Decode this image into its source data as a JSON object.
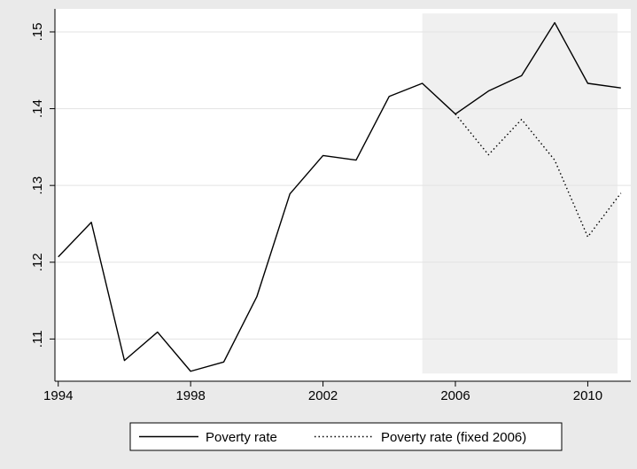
{
  "chart_data": {
    "type": "line",
    "title": "",
    "xlabel": "",
    "ylabel": "",
    "xlim": [
      1993.9,
      2011.3
    ],
    "ylim": [
      0.1045,
      0.153
    ],
    "x_ticks": [
      1994,
      1998,
      2002,
      2006,
      2010
    ],
    "x_tick_labels": [
      "1994",
      "1998",
      "2002",
      "2006",
      "2010"
    ],
    "y_ticks": [
      0.11,
      0.12,
      0.13,
      0.14,
      0.15
    ],
    "y_tick_labels": [
      ".11",
      ".12",
      ".13",
      ".14",
      ".15"
    ],
    "grid": "horizontal",
    "shaded_region": {
      "x": [
        2005,
        2010.9
      ],
      "y": [
        0.1055,
        0.1524
      ],
      "color": "#f0f0f0"
    },
    "legend": {
      "position": "bottom"
    },
    "series": [
      {
        "name": "Poverty rate",
        "style": "solid",
        "color": "#000000",
        "x": [
          1994,
          1995,
          1996,
          1997,
          1998,
          1999,
          2000,
          2001,
          2002,
          2003,
          2004,
          2005,
          2006,
          2007,
          2008,
          2009,
          2010,
          2011
        ],
        "y": [
          0.1207,
          0.1252,
          0.1072,
          0.1109,
          0.1058,
          0.107,
          0.1155,
          0.1289,
          0.1339,
          0.1333,
          0.1416,
          0.1433,
          0.1393,
          0.1423,
          0.1443,
          0.1512,
          0.1433,
          0.1427
        ]
      },
      {
        "name": "Poverty rate (fixed 2006)",
        "style": "dotted",
        "color": "#000000",
        "x": [
          2006,
          2007,
          2008,
          2009,
          2010,
          2011
        ],
        "y": [
          0.1393,
          0.134,
          0.1386,
          0.1333,
          0.1233,
          0.129
        ]
      }
    ]
  }
}
